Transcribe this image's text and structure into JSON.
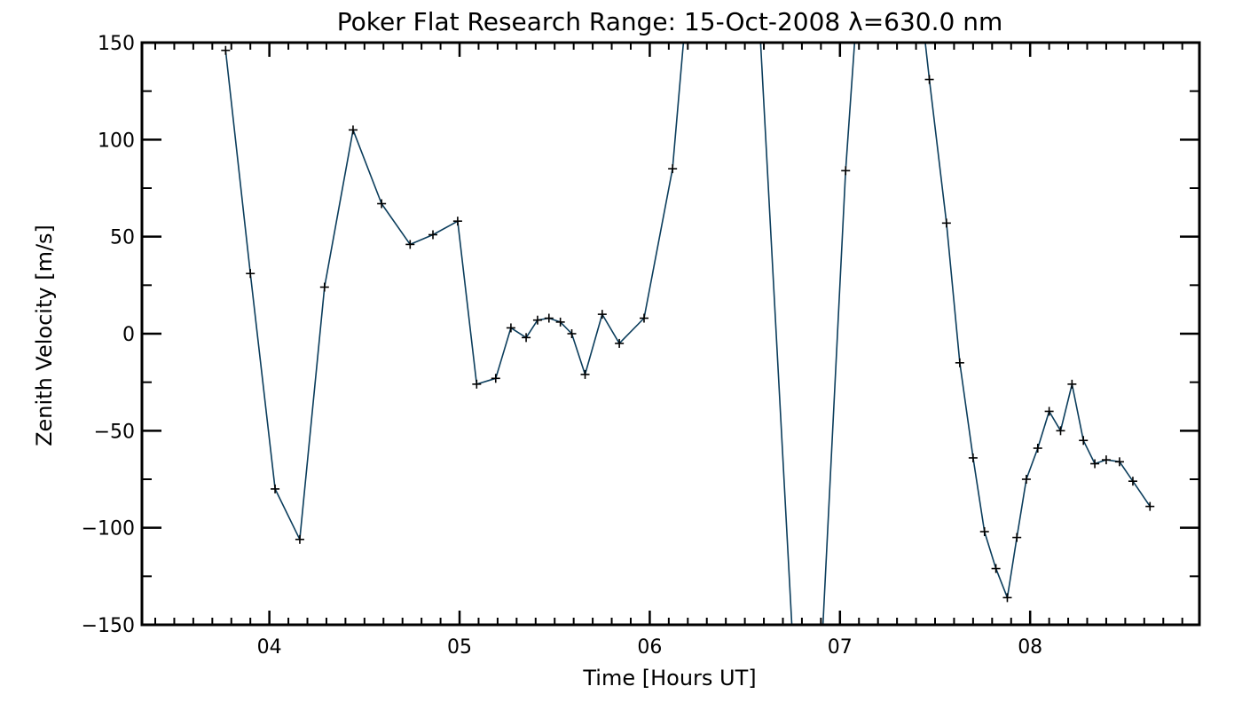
{
  "chart_data": {
    "type": "line",
    "title": "Poker Flat Research Range: 15-Oct-2008 λ=630.0 nm",
    "xlabel": "Time [Hours UT]",
    "ylabel": "Zenith Velocity [m/s]",
    "xlim": [
      3.33,
      8.89
    ],
    "ylim": [
      -150,
      150
    ],
    "x_ticks": [
      4,
      5,
      6,
      7,
      8
    ],
    "x_tick_labels": [
      "04",
      "05",
      "06",
      "07",
      "08"
    ],
    "y_ticks": [
      -150,
      -100,
      -50,
      0,
      50,
      100,
      150
    ],
    "y_tick_labels": [
      "−150",
      "−100",
      "−50",
      "0",
      "50",
      "100",
      "150"
    ],
    "grid": false,
    "line_color": "#0b3d5c",
    "marker_color": "#000000",
    "marker": "plus",
    "series": [
      {
        "values": [
          {
            "x": 3.77,
            "y": 146,
            "marked": true
          },
          {
            "x": 3.9,
            "y": 31,
            "marked": true
          },
          {
            "x": 4.03,
            "y": -80,
            "marked": true
          },
          {
            "x": 4.16,
            "y": -106,
            "marked": true
          },
          {
            "x": 4.29,
            "y": 24,
            "marked": true
          },
          {
            "x": 4.44,
            "y": 105,
            "marked": true
          },
          {
            "x": 4.59,
            "y": 67,
            "marked": true
          },
          {
            "x": 4.74,
            "y": 46,
            "marked": true
          },
          {
            "x": 4.86,
            "y": 51,
            "marked": true
          },
          {
            "x": 4.99,
            "y": 58,
            "marked": true
          },
          {
            "x": 5.09,
            "y": -26,
            "marked": true
          },
          {
            "x": 5.19,
            "y": -23,
            "marked": true
          },
          {
            "x": 5.27,
            "y": 3,
            "marked": true
          },
          {
            "x": 5.35,
            "y": -2,
            "marked": true
          },
          {
            "x": 5.41,
            "y": 7,
            "marked": true
          },
          {
            "x": 5.47,
            "y": 8,
            "marked": true
          },
          {
            "x": 5.53,
            "y": 6,
            "marked": true
          },
          {
            "x": 5.59,
            "y": 0,
            "marked": true
          },
          {
            "x": 5.66,
            "y": -21,
            "marked": true
          },
          {
            "x": 5.75,
            "y": 10,
            "marked": true
          },
          {
            "x": 5.84,
            "y": -5,
            "marked": true
          },
          {
            "x": 5.97,
            "y": 8,
            "marked": true
          },
          {
            "x": 6.12,
            "y": 85,
            "marked": true
          },
          {
            "x": 6.23,
            "y": 210,
            "marked": false
          },
          {
            "x": 6.55,
            "y": 210,
            "marked": false
          },
          {
            "x": 6.78,
            "y": -210,
            "marked": false
          },
          {
            "x": 6.88,
            "y": -210,
            "marked": false
          },
          {
            "x": 7.03,
            "y": 84,
            "marked": true
          },
          {
            "x": 7.12,
            "y": 210,
            "marked": false
          },
          {
            "x": 7.38,
            "y": 210,
            "marked": false
          },
          {
            "x": 7.47,
            "y": 131,
            "marked": true
          },
          {
            "x": 7.56,
            "y": 57,
            "marked": true
          },
          {
            "x": 7.63,
            "y": -15,
            "marked": true
          },
          {
            "x": 7.7,
            "y": -64,
            "marked": true
          },
          {
            "x": 7.76,
            "y": -102,
            "marked": true
          },
          {
            "x": 7.82,
            "y": -121,
            "marked": true
          },
          {
            "x": 7.88,
            "y": -136,
            "marked": true
          },
          {
            "x": 7.93,
            "y": -105,
            "marked": true
          },
          {
            "x": 7.98,
            "y": -75,
            "marked": true
          },
          {
            "x": 8.04,
            "y": -59,
            "marked": true
          },
          {
            "x": 8.1,
            "y": -40,
            "marked": true
          },
          {
            "x": 8.16,
            "y": -50,
            "marked": true
          },
          {
            "x": 8.22,
            "y": -26,
            "marked": true
          },
          {
            "x": 8.28,
            "y": -55,
            "marked": true
          },
          {
            "x": 8.34,
            "y": -67,
            "marked": true
          },
          {
            "x": 8.4,
            "y": -65,
            "marked": true
          },
          {
            "x": 8.47,
            "y": -66,
            "marked": true
          },
          {
            "x": 8.54,
            "y": -76,
            "marked": true
          },
          {
            "x": 8.63,
            "y": -89,
            "marked": true
          }
        ]
      }
    ]
  }
}
